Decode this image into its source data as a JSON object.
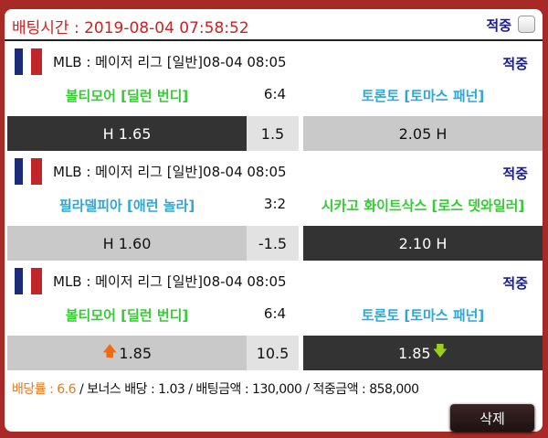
{
  "header": {
    "bet_time": "배팅시간 : 2019-08-04 07:58:52",
    "hit_label": "적중",
    "checkbox_checked": false
  },
  "matches": [
    {
      "league": "MLB : 메이저 리그 [일반]08-04 08:05",
      "status": "적중",
      "home": "볼티모어 [딜런 번디]",
      "home_color": "green",
      "away": "토론토 [토마스 패넌]",
      "away_color": "cyan",
      "score": "6:4",
      "home_odd": "H 1.65",
      "line": "1.5",
      "away_odd": "2.05 H",
      "selected": "home"
    },
    {
      "league": "MLB : 메이저 리그 [일반]08-04 08:05",
      "status": "적중",
      "home": "필라델피아 [애런 놀라]",
      "home_color": "cyan",
      "away": "시카고 화이트삭스 [로스 뎃와일러]",
      "away_color": "green",
      "score": "3:2",
      "home_odd": "H 1.60",
      "line": "-1.5",
      "away_odd": "2.10 H",
      "selected": "away"
    },
    {
      "league": "MLB : 메이저 리그 [일반]08-04 08:05",
      "status": "적중",
      "home": "볼티모어 [딜런 번디]",
      "home_color": "green",
      "away": "토론토 [토마스 패넌]",
      "away_color": "cyan",
      "score": "6:4",
      "home_odd": "1.85",
      "home_icon": "arrow-up-icon",
      "line": "10.5",
      "away_odd": "1.85",
      "away_icon": "arrow-down-icon",
      "selected": "away"
    }
  ],
  "summary": {
    "rate_label": "배당률 : 6.6",
    "rest": " / 보너스 배당 : 1.03 / 배팅금액 : 130,000 / 적중금액 : 858,000"
  },
  "delete_label": "삭제",
  "colors": {
    "border": "#a82a27",
    "time": "#cc2222",
    "green": "#33cc33",
    "cyan": "#2aa8d8",
    "hit": "#1a1a9a",
    "selected": "#333333"
  }
}
